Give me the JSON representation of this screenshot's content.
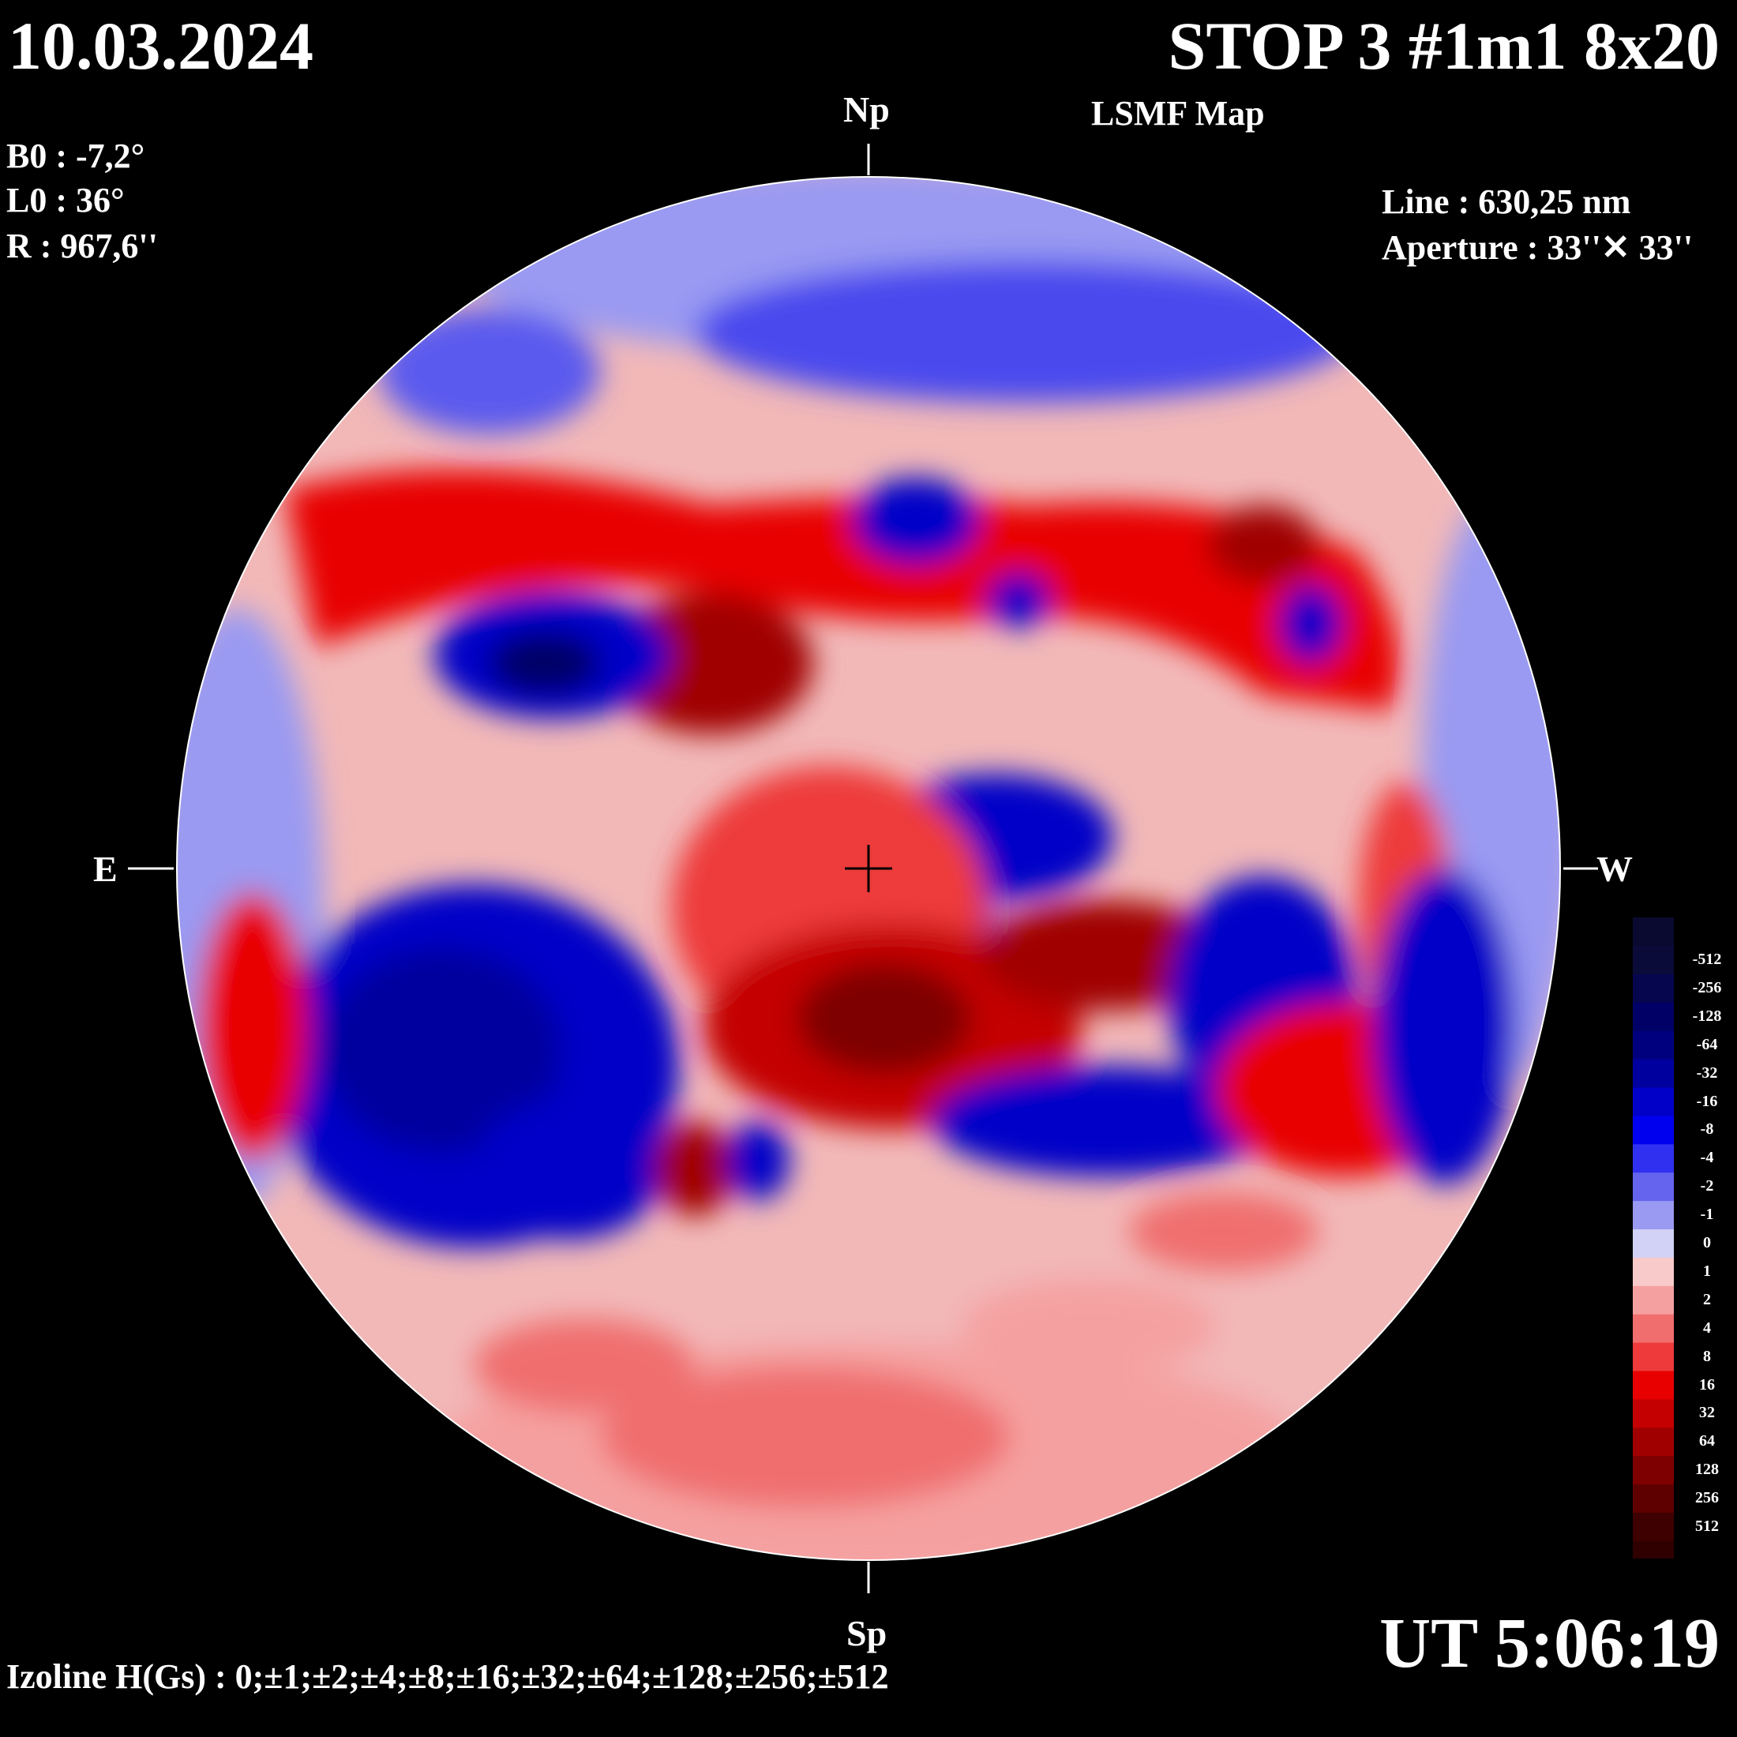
{
  "header": {
    "date": "10.03.2024",
    "title": "STOP 3 #1m1 8x20",
    "subtitle": "LSMF  Map"
  },
  "params": {
    "b0": "B0 : -7,2°",
    "l0": "L0 : 36°",
    "r": "R  : 967,6''",
    "line": "Line :  630,25 nm",
    "aperture": "Aperture : 33''✕ 33''"
  },
  "directions": {
    "north": "Np",
    "south": "Sp",
    "east": "E",
    "west": "W"
  },
  "time": "UT 5:06:19",
  "izoline": "Izoline H(Gs) : 0;±1;±2;±4;±8;±16;±32;±64;±128;±256;±512",
  "colorbar": {
    "levels": [
      "-512",
      "-256",
      "-128",
      "-64",
      "-32",
      "-16",
      "-8",
      "-4",
      "-2",
      "-1",
      "0",
      "1",
      "2",
      "4",
      "8",
      "16",
      "32",
      "64",
      "128",
      "256",
      "512"
    ],
    "colors": [
      "#0b0b3a",
      "#06064f",
      "#000066",
      "#00007f",
      "#00009e",
      "#0000c8",
      "#0000ee",
      "#3030f0",
      "#6464ee",
      "#9a9af2",
      "#d2d2f6",
      "#f8caca",
      "#f5a0a0",
      "#f06e6e",
      "#ee3a3a",
      "#e80000",
      "#c40000",
      "#a00000",
      "#7e0000",
      "#5e0000",
      "#3e0000"
    ]
  }
}
